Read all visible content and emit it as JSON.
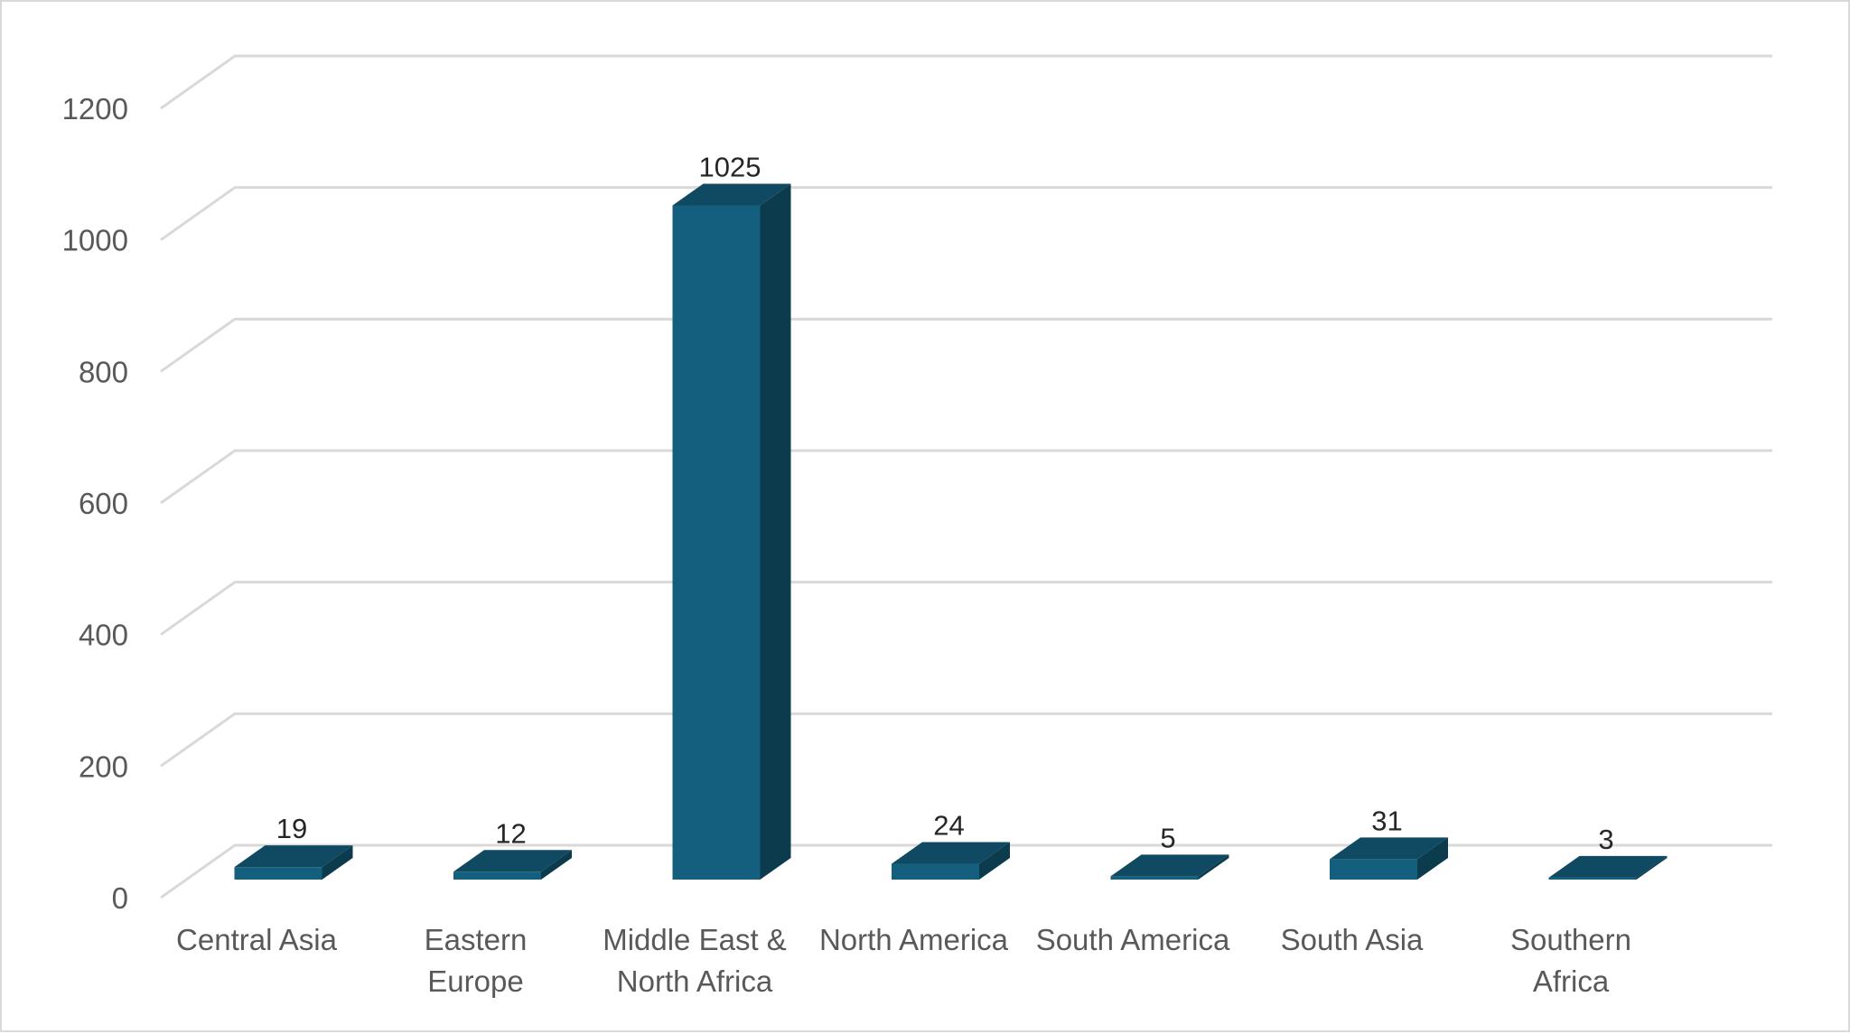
{
  "chart_data": {
    "type": "bar",
    "style": "3d-column",
    "title": "",
    "xlabel": "",
    "ylabel": "",
    "categories": [
      "Central Asia",
      "Eastern Europe",
      "Middle East & North Africa",
      "North America",
      "South America",
      "South Asia",
      "Southern Africa"
    ],
    "category_label_lines": [
      [
        "Central Asia"
      ],
      [
        "Eastern",
        "Europe"
      ],
      [
        "Middle East &",
        "North Africa"
      ],
      [
        "North America"
      ],
      [
        "South America"
      ],
      [
        "South Asia"
      ],
      [
        "Southern",
        "Africa"
      ]
    ],
    "values": [
      19,
      12,
      1025,
      24,
      5,
      31,
      3
    ],
    "data_labels": [
      "19",
      "12",
      "1025",
      "24",
      "5",
      "31",
      "3"
    ],
    "ylim": [
      0,
      1200
    ],
    "yticks": [
      0,
      200,
      400,
      600,
      800,
      1000,
      1200
    ],
    "ytick_labels": [
      "0",
      "200",
      "400",
      "600",
      "800",
      "1000",
      "1200"
    ],
    "grid": true,
    "legend": "none",
    "colors": {
      "bar_front": "#155f7e",
      "bar_side": "#0d3b4e",
      "bar_top": "#0f4a62",
      "gridline": "#d9d9d9",
      "axis_text": "#595959",
      "label_text": "#262626"
    }
  }
}
